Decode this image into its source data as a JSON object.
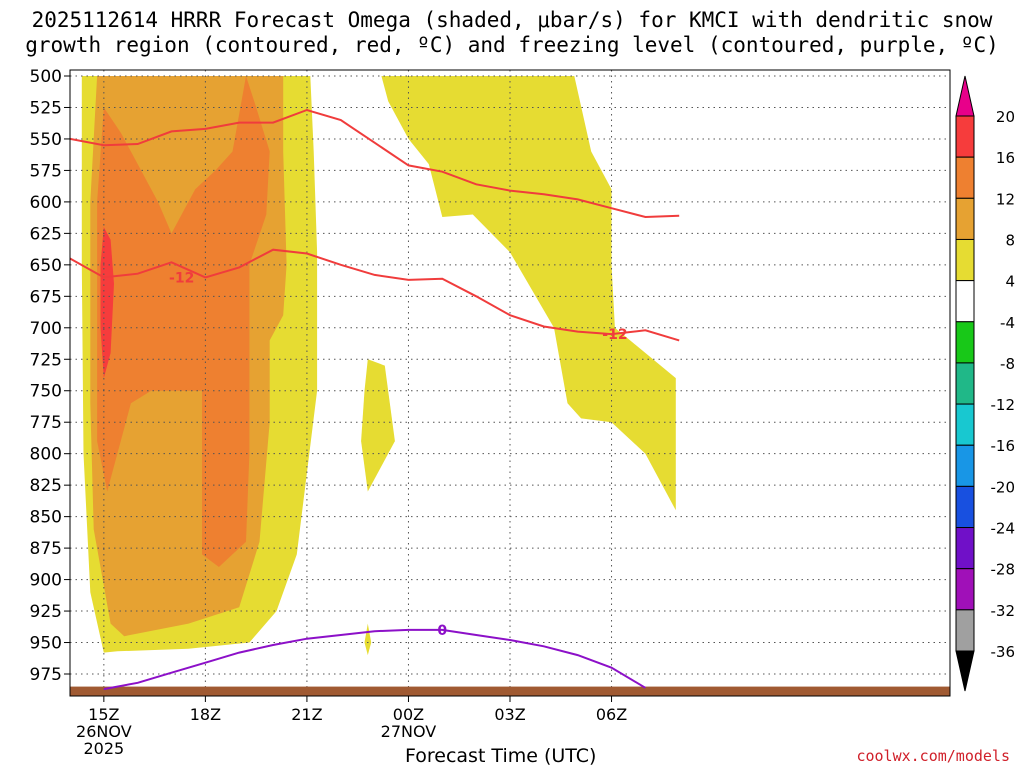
{
  "title_line1": "2025112614 HRRR Forecast Omega (shaded, μbar/s) for KMCI with dendritic snow",
  "title_line2": "growth region (contoured, red, ºC) and freezing level (contoured, purple, ºC)",
  "credit": "coolwx.com/models",
  "chart_data": {
    "type": "time-height cross section (filled contours + line contours)",
    "xlabel": "Forecast Time (UTC)",
    "ylabel": "",
    "x_unit": "hours after 2025-11-26 14Z",
    "x_range": [
      14,
      40
    ],
    "y_unit": "hPa",
    "y_range": [
      500,
      990
    ],
    "y_ticks": [
      500,
      525,
      550,
      575,
      600,
      625,
      650,
      675,
      700,
      725,
      750,
      775,
      800,
      825,
      850,
      875,
      900,
      925,
      950,
      975
    ],
    "x_ticks": [
      {
        "x": 15,
        "label": "15Z",
        "sub1": "26NOV",
        "sub2": "2025"
      },
      {
        "x": 18,
        "label": "18Z",
        "sub1": "",
        "sub2": ""
      },
      {
        "x": 21,
        "label": "21Z",
        "sub1": "",
        "sub2": ""
      },
      {
        "x": 24,
        "label": "00Z",
        "sub1": "27NOV",
        "sub2": ""
      },
      {
        "x": 27,
        "label": "03Z",
        "sub1": "",
        "sub2": ""
      },
      {
        "x": 30,
        "label": "06Z",
        "sub1": "",
        "sub2": ""
      }
    ],
    "grid": true,
    "colorbar": {
      "unit": "μbar/s",
      "labels": [
        "20",
        "16",
        "12",
        "8",
        "4",
        "-4",
        "-8",
        "-12",
        "-16",
        "-20",
        "-24",
        "-28",
        "-32",
        "-36"
      ],
      "colors": [
        "#e8008a",
        "#f63c3c",
        "#ee8030",
        "#e6a232",
        "#e6dc32",
        "#ffffff",
        "#18c818",
        "#20b888",
        "#18c8d0",
        "#1896e6",
        "#1850e0",
        "#7010c8",
        "#a010b8",
        "#a0a0a0",
        "#000000"
      ]
    },
    "omega_filled_regions": [
      {
        "level": "4 to 8",
        "color": "#e6dc32",
        "polygons": [
          [
            [
              14.35,
              500
            ],
            [
              20.2,
              500
            ],
            [
              21.1,
              500
            ],
            [
              21.2,
              560
            ],
            [
              21.3,
              640
            ],
            [
              21.3,
              750
            ],
            [
              20.7,
              880
            ],
            [
              20.1,
              925
            ],
            [
              19.3,
              950
            ],
            [
              17.5,
              955
            ],
            [
              15.4,
              957
            ],
            [
              15.0,
              958
            ],
            [
              14.6,
              910
            ],
            [
              14.4,
              800
            ],
            [
              14.35,
              650
            ]
          ],
          [
            [
              22.8,
              725
            ],
            [
              23.3,
              730
            ],
            [
              23.6,
              790
            ],
            [
              23.0,
              820
            ],
            [
              22.8,
              830
            ],
            [
              22.6,
              790
            ],
            [
              22.7,
              750
            ]
          ],
          [
            [
              22.8,
              935
            ],
            [
              22.9,
              950
            ],
            [
              22.8,
              960
            ],
            [
              22.7,
              950
            ]
          ],
          [
            [
              23.2,
              500
            ],
            [
              28.9,
              500
            ],
            [
              29.4,
              560
            ],
            [
              30.0,
              590
            ],
            [
              30.0,
              650
            ],
            [
              30.1,
              700
            ],
            [
              31.9,
              740
            ],
            [
              31.9,
              845
            ],
            [
              31.0,
              800
            ],
            [
              30.0,
              775
            ],
            [
              29.1,
              772
            ],
            [
              28.7,
              760
            ],
            [
              28.3,
              700
            ],
            [
              27.0,
              640
            ],
            [
              25.9,
              610
            ],
            [
              25.0,
              612
            ],
            [
              24.6,
              570
            ],
            [
              24.0,
              550
            ],
            [
              23.4,
              520
            ]
          ]
        ]
      },
      {
        "level": "8 to 12",
        "color": "#e6a232",
        "polygons": [
          [
            [
              14.8,
              500
            ],
            [
              20.3,
              500
            ],
            [
              20.3,
              560
            ],
            [
              20.4,
              650
            ],
            [
              20.3,
              690
            ],
            [
              19.9,
              710
            ],
            [
              19.9,
              775
            ],
            [
              19.6,
              870
            ],
            [
              19.0,
              922
            ],
            [
              17.5,
              935
            ],
            [
              15.6,
              945
            ],
            [
              15.2,
              935
            ],
            [
              14.7,
              860
            ],
            [
              14.6,
              760
            ],
            [
              14.6,
              600
            ]
          ]
        ]
      },
      {
        "level": "12 to 16",
        "color": "#ee8030",
        "polygons": [
          [
            [
              15.0,
              525
            ],
            [
              15.5,
              545
            ],
            [
              16.0,
              570
            ],
            [
              16.6,
              600
            ],
            [
              17.0,
              625
            ],
            [
              17.7,
              590
            ],
            [
              18.3,
              575
            ],
            [
              18.8,
              560
            ],
            [
              19.2,
              500
            ],
            [
              19.5,
              525
            ],
            [
              19.9,
              560
            ],
            [
              19.8,
              610
            ],
            [
              19.3,
              650
            ],
            [
              19.3,
              750
            ],
            [
              19.3,
              800
            ],
            [
              19.2,
              870
            ],
            [
              18.4,
              890
            ],
            [
              17.9,
              880
            ],
            [
              17.9,
              815
            ],
            [
              17.9,
              750
            ],
            [
              16.4,
              750
            ],
            [
              15.8,
              760
            ],
            [
              15.1,
              830
            ],
            [
              14.8,
              790
            ],
            [
              14.8,
              700
            ],
            [
              14.8,
              600
            ]
          ]
        ]
      },
      {
        "level": "16 to 20",
        "color": "#f63c3c",
        "polygons": [
          [
            [
              15.0,
              620
            ],
            [
              15.2,
              630
            ],
            [
              15.3,
              665
            ],
            [
              15.2,
              720
            ],
            [
              15.0,
              740
            ],
            [
              14.9,
              700
            ],
            [
              14.9,
              650
            ]
          ]
        ]
      }
    ],
    "dgz_contours": [
      {
        "value": -12,
        "label": "",
        "color": "#f03c3c",
        "points": [
          [
            14.0,
            550
          ],
          [
            15.0,
            555
          ],
          [
            16.0,
            554
          ],
          [
            17.0,
            544
          ],
          [
            18.0,
            542
          ],
          [
            19.0,
            537
          ],
          [
            20.0,
            537
          ],
          [
            21.0,
            527
          ],
          [
            22.0,
            535
          ],
          [
            23.0,
            553
          ],
          [
            24.0,
            571
          ],
          [
            25.0,
            576
          ],
          [
            26.0,
            586
          ],
          [
            27.0,
            591
          ],
          [
            28.0,
            594
          ],
          [
            29.0,
            598
          ],
          [
            30.0,
            605
          ],
          [
            31.0,
            612
          ],
          [
            32.0,
            611
          ]
        ]
      },
      {
        "value": -12,
        "label": "-12",
        "color": "#f03c3c",
        "points": [
          [
            14.0,
            645
          ],
          [
            15.0,
            660
          ],
          [
            16.0,
            657
          ],
          [
            17.0,
            648
          ],
          [
            18.0,
            660
          ],
          [
            19.0,
            652
          ],
          [
            20.0,
            638
          ],
          [
            21.0,
            641
          ],
          [
            22.0,
            650
          ],
          [
            23.0,
            658
          ],
          [
            24.0,
            662
          ],
          [
            25.0,
            661
          ],
          [
            26.0,
            675
          ],
          [
            27.0,
            690
          ],
          [
            28.0,
            699
          ],
          [
            29.0,
            703
          ],
          [
            30.0,
            705
          ],
          [
            31.0,
            702
          ],
          [
            32.0,
            710
          ]
        ]
      }
    ],
    "freezing_level_contours": [
      {
        "value": 0,
        "label": "0",
        "color": "#8c10c8",
        "points": [
          [
            15.0,
            987
          ],
          [
            16.0,
            982
          ],
          [
            17.0,
            974
          ],
          [
            18.0,
            966
          ],
          [
            19.0,
            958
          ],
          [
            20.0,
            952
          ],
          [
            21.0,
            947
          ],
          [
            22.0,
            944
          ],
          [
            23.0,
            941
          ],
          [
            24.0,
            940
          ],
          [
            25.0,
            940
          ],
          [
            26.0,
            944
          ],
          [
            27.0,
            948
          ],
          [
            28.0,
            953
          ],
          [
            29.0,
            960
          ],
          [
            30.0,
            970
          ],
          [
            31.0,
            986
          ]
        ]
      }
    ],
    "terrain": {
      "top_hPa": 985,
      "color": "#a05a32"
    }
  }
}
